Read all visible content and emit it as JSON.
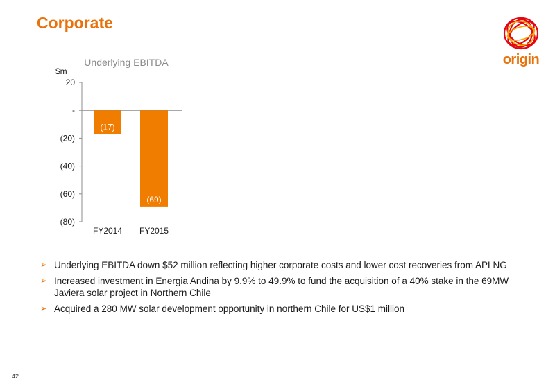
{
  "slide": {
    "title": "Corporate",
    "page_number": "42",
    "accent_color": "#e8730c"
  },
  "logo": {
    "text": "origin",
    "icon": "origin-ring-logo-icon"
  },
  "chart_data": {
    "type": "bar",
    "title": "Underlying EBITDA",
    "ylabel": "$m",
    "xlabel": "",
    "categories": [
      "FY2014",
      "FY2015"
    ],
    "values": [
      -17,
      -69
    ],
    "data_labels": [
      "(17)",
      "(69)"
    ],
    "ylim": [
      -80,
      20
    ],
    "yticks": [
      20,
      0,
      -20,
      -40,
      -60,
      -80
    ],
    "ytick_labels": [
      "20",
      "-",
      "(20)",
      "(40)",
      "(60)",
      "(80)"
    ],
    "bar_color": "#f07d00",
    "grid": false,
    "legend": "none"
  },
  "bullets": [
    {
      "marker": "➢",
      "text": "Underlying EBITDA down $52 million reflecting higher corporate costs and lower cost recoveries from APLNG"
    },
    {
      "marker": "➢",
      "text": "Increased investment in Energia Andina by 9.9% to 49.9% to fund the acquisition of a 40% stake in the 69MW Javiera solar project in Northern Chile"
    },
    {
      "marker": "➢",
      "text": "Acquired a 280 MW solar development opportunity in northern Chile for US$1 million"
    }
  ]
}
